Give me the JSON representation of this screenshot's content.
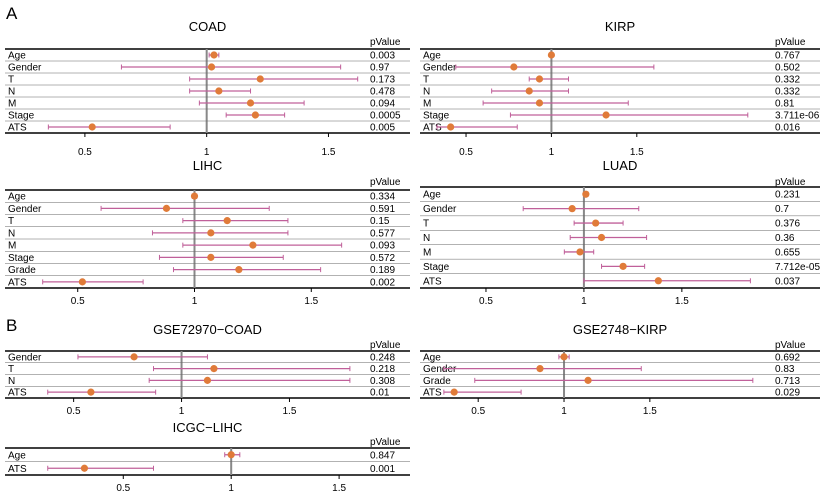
{
  "section_labels": [
    "A",
    "B"
  ],
  "colors": {
    "whisker": "#c0609a",
    "point": "#e07b39",
    "refline": "#888888",
    "axis": "#000000"
  },
  "pvalue_header": "pValue",
  "chart_data": [
    {
      "type": "forest",
      "title": "COAD",
      "rows": [
        "Age",
        "Gender",
        "T",
        "N",
        "M",
        "Stage",
        "ATS"
      ],
      "hr": [
        1.03,
        1.02,
        1.22,
        1.05,
        1.18,
        1.2,
        0.53
      ],
      "low": [
        1.01,
        0.65,
        0.93,
        0.93,
        0.97,
        1.08,
        0.35
      ],
      "high": [
        1.05,
        1.55,
        1.62,
        1.18,
        1.4,
        1.32,
        0.85
      ],
      "pvalues": [
        "0.003",
        "0.97",
        "0.173",
        "0.478",
        "0.094",
        "0.0005",
        "0.005"
      ],
      "xticks": [
        "0.5",
        "1",
        "1.5"
      ],
      "xlim": [
        0.25,
        1.65
      ]
    },
    {
      "type": "forest",
      "title": "KIRP",
      "rows": [
        "Age",
        "Gender",
        "T",
        "N",
        "M",
        "Stage",
        "ATS"
      ],
      "hr": [
        1.0,
        0.78,
        0.93,
        0.87,
        0.93,
        1.32,
        0.41
      ],
      "low": [
        0.99,
        0.44,
        0.87,
        0.65,
        0.6,
        0.76,
        0.33
      ],
      "high": [
        1.01,
        1.6,
        1.1,
        1.1,
        1.45,
        2.15,
        0.8
      ],
      "pvalues": [
        "0.767",
        "0.502",
        "0.332",
        "0.332",
        "0.81",
        "3.711e-06",
        "0.016"
      ],
      "xticks": [
        "0.5",
        "1",
        "1.5"
      ],
      "xlim": [
        0.33,
        2.28
      ]
    },
    {
      "type": "forest",
      "title": "LIHC",
      "rows": [
        "Age",
        "Gender",
        "T",
        "N",
        "M",
        "Stage",
        "Grade",
        "ATS"
      ],
      "hr": [
        1.0,
        0.88,
        1.14,
        1.07,
        1.25,
        1.07,
        1.19,
        0.52
      ],
      "low": [
        0.99,
        0.6,
        0.95,
        0.82,
        0.95,
        0.85,
        0.91,
        0.35
      ],
      "high": [
        1.01,
        1.32,
        1.4,
        1.4,
        1.63,
        1.38,
        1.54,
        0.78
      ],
      "pvalues": [
        "0.334",
        "0.591",
        "0.15",
        "0.577",
        "0.093",
        "0.572",
        "0.189",
        "0.002"
      ],
      "xticks": [
        "0.5",
        "1",
        "1.5"
      ],
      "xlim": [
        0.27,
        1.73
      ]
    },
    {
      "type": "forest",
      "title": "LUAD",
      "rows": [
        "Age",
        "Gender",
        "T",
        "N",
        "M",
        "Stage",
        "ATS"
      ],
      "hr": [
        1.01,
        0.94,
        1.06,
        1.09,
        0.98,
        1.2,
        1.38
      ],
      "low": [
        1.0,
        0.69,
        0.95,
        0.93,
        0.9,
        1.09,
        1.0
      ],
      "high": [
        1.02,
        1.28,
        1.2,
        1.32,
        1.05,
        1.31,
        1.85
      ],
      "pvalues": [
        "0.231",
        "0.7",
        "0.376",
        "0.36",
        "0.655",
        "7.712e-05",
        "0.037"
      ],
      "xticks": [
        "0.5",
        "1",
        "1.5"
      ],
      "xlim": [
        0.25,
        1.95
      ]
    },
    {
      "type": "forest",
      "title": "GSE72970−COAD",
      "rows": [
        "Gender",
        "T",
        "N",
        "ATS"
      ],
      "hr": [
        0.78,
        1.15,
        1.12,
        0.58
      ],
      "low": [
        0.52,
        0.87,
        0.85,
        0.38
      ],
      "high": [
        1.12,
        1.78,
        1.78,
        0.88
      ],
      "pvalues": [
        "0.248",
        "0.218",
        "0.308",
        "0.01"
      ],
      "xticks": [
        "0.5",
        "1",
        "1.5"
      ],
      "xlim": [
        0.27,
        1.85
      ]
    },
    {
      "type": "forest",
      "title": "GSE2748−KIRP",
      "rows": [
        "Age",
        "Gender",
        "Grade",
        "ATS"
      ],
      "hr": [
        1.0,
        0.86,
        1.14,
        0.36
      ],
      "low": [
        0.97,
        0.3,
        0.48,
        0.3
      ],
      "high": [
        1.03,
        1.45,
        2.1,
        0.75
      ],
      "pvalues": [
        "0.692",
        "0.83",
        "0.713",
        "0.029"
      ],
      "xticks": [
        "0.5",
        "1",
        "1.5"
      ],
      "xlim": [
        0.26,
        2.2
      ]
    },
    {
      "type": "forest",
      "title": "ICGC−LIHC",
      "rows": [
        "Age",
        "ATS"
      ],
      "hr": [
        1.0,
        0.32
      ],
      "low": [
        0.97,
        0.15
      ],
      "high": [
        1.04,
        0.64
      ],
      "pvalues": [
        "0.847",
        "0.001"
      ],
      "xticks": [
        "0.5",
        "1",
        "1.5"
      ],
      "xlim": [
        0.04,
        1.62
      ]
    }
  ]
}
